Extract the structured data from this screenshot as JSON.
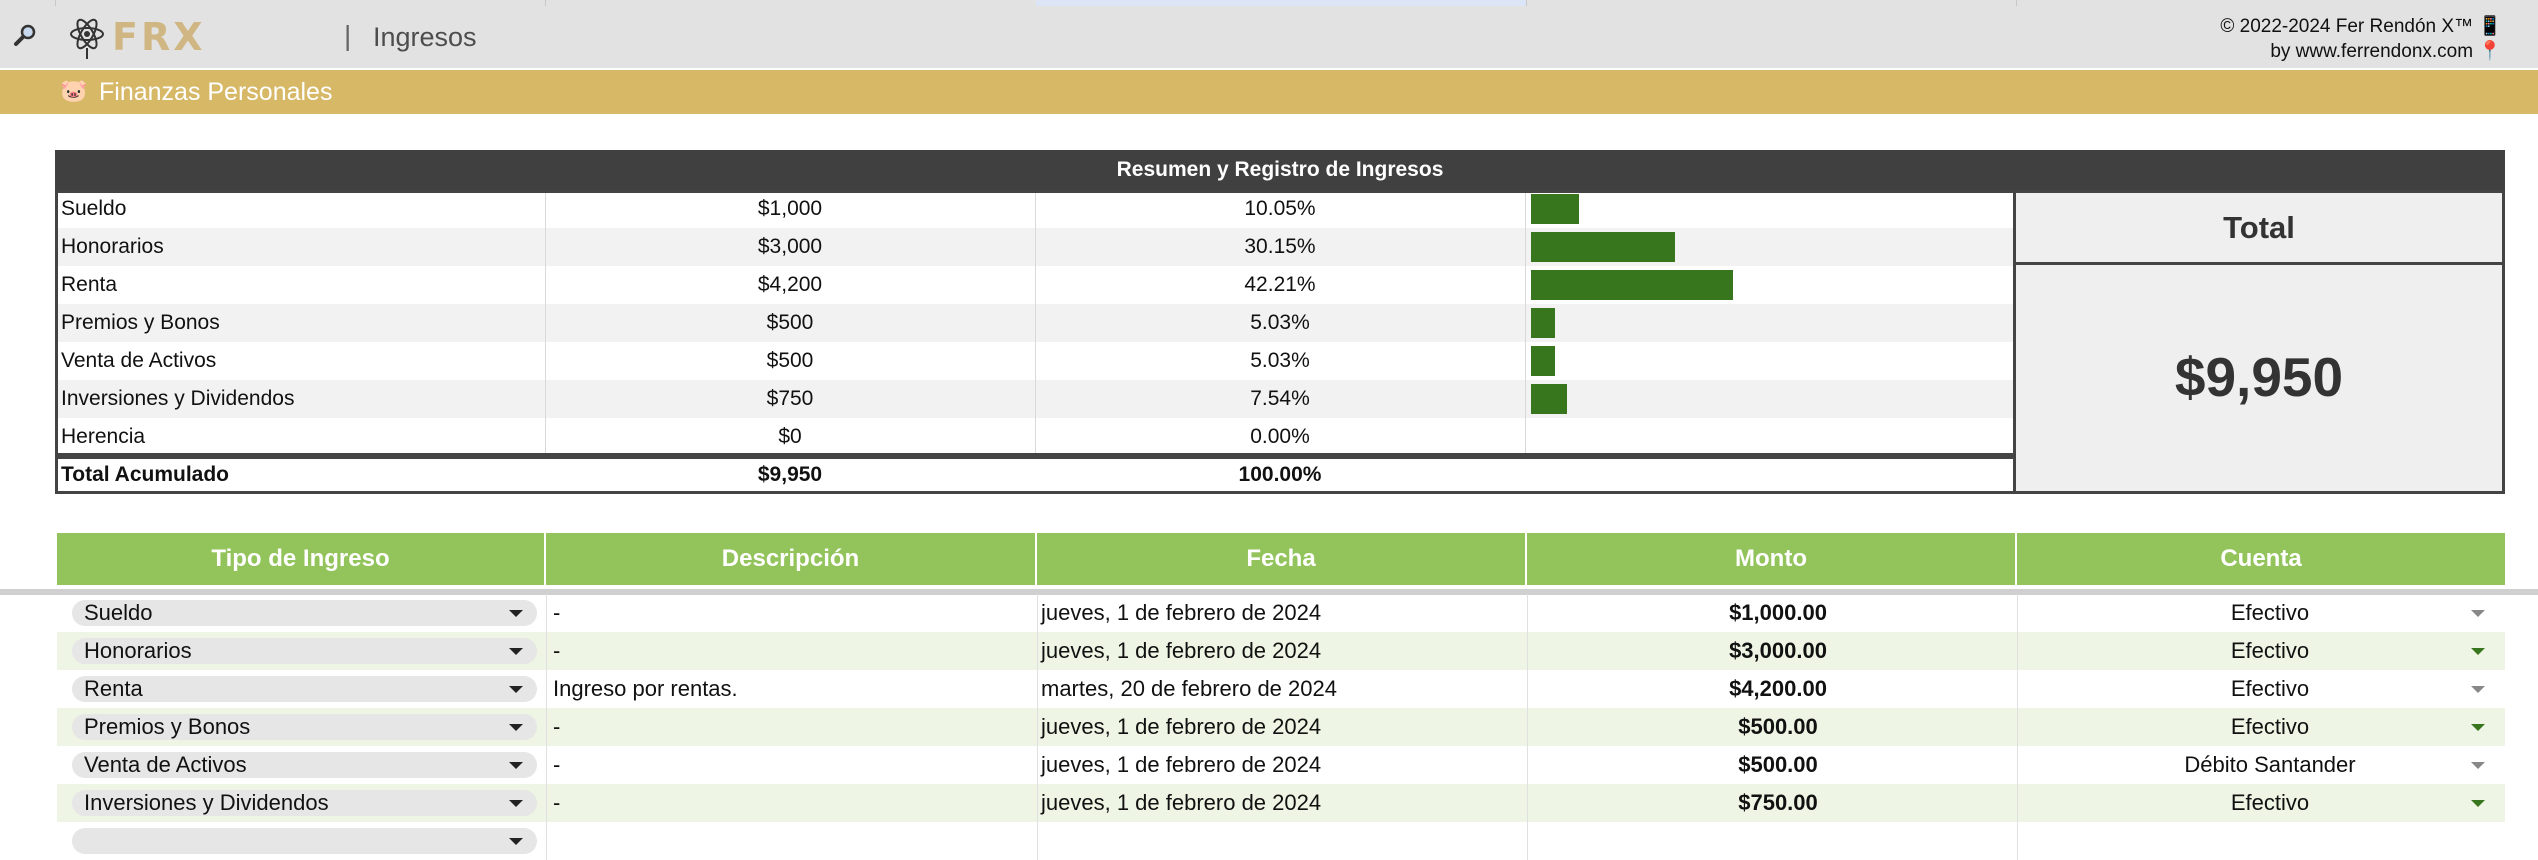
{
  "header": {
    "logo_text": "FRX",
    "separator": "|",
    "page_title": "Ingresos",
    "copyright_line1": "© 2022-2024 Fer Rendón X™ 📱",
    "copyright_line2": "by www.ferrendonx.com 📍"
  },
  "banner": {
    "emoji": "🐷",
    "title": "Finanzas Personales"
  },
  "summary": {
    "title": "Resumen y Registro de Ingresos",
    "rows": [
      {
        "name": "Sueldo",
        "amount": "$1,000",
        "percent": "10.05%",
        "share": 0.1005
      },
      {
        "name": "Honorarios",
        "amount": "$3,000",
        "percent": "30.15%",
        "share": 0.3015
      },
      {
        "name": "Renta",
        "amount": "$4,200",
        "percent": "42.21%",
        "share": 0.4221
      },
      {
        "name": "Premios y Bonos",
        "amount": "$500",
        "percent": "5.03%",
        "share": 0.0503
      },
      {
        "name": "Venta de Activos",
        "amount": "$500",
        "percent": "5.03%",
        "share": 0.0503
      },
      {
        "name": "Inversiones y Dividendos",
        "amount": "$750",
        "percent": "7.54%",
        "share": 0.0754
      },
      {
        "name": "Herencia",
        "amount": "$0",
        "percent": "0.00%",
        "share": 0
      }
    ],
    "total_row": {
      "label": "Total Acumulado",
      "amount": "$9,950",
      "percent": "100.00%"
    },
    "total_label": "Total",
    "total_value": "$9,950",
    "bar_color": "#38761d"
  },
  "register": {
    "columns": [
      "Tipo de Ingreso",
      "Descripción",
      "Fecha",
      "Monto",
      "Cuenta"
    ],
    "rows": [
      {
        "type": "Sueldo",
        "description": "-",
        "date": "jueves, 1 de febrero de 2024",
        "amount": "$1,000.00",
        "account": "Efectivo"
      },
      {
        "type": "Honorarios",
        "description": "-",
        "date": "jueves, 1 de febrero de 2024",
        "amount": "$3,000.00",
        "account": "Efectivo"
      },
      {
        "type": "Renta",
        "description": "Ingreso por rentas.",
        "date": "martes, 20 de febrero de 2024",
        "amount": "$4,200.00",
        "account": "Efectivo"
      },
      {
        "type": "Premios y Bonos",
        "description": "-",
        "date": "jueves, 1 de febrero de 2024",
        "amount": "$500.00",
        "account": "Efectivo"
      },
      {
        "type": "Venta de Activos",
        "description": "-",
        "date": "jueves, 1 de febrero de 2024",
        "amount": "$500.00",
        "account": "Débito Santander"
      },
      {
        "type": "Inversiones y Dividendos",
        "description": "-",
        "date": "jueves, 1 de febrero de 2024",
        "amount": "$750.00",
        "account": "Efectivo"
      },
      {
        "type": "",
        "description": "",
        "date": "",
        "amount": "",
        "account": ""
      }
    ]
  },
  "colors": {
    "banner": "#d6b866",
    "header_green": "#93c35b",
    "summary_header": "#404040",
    "bar": "#38761d"
  }
}
